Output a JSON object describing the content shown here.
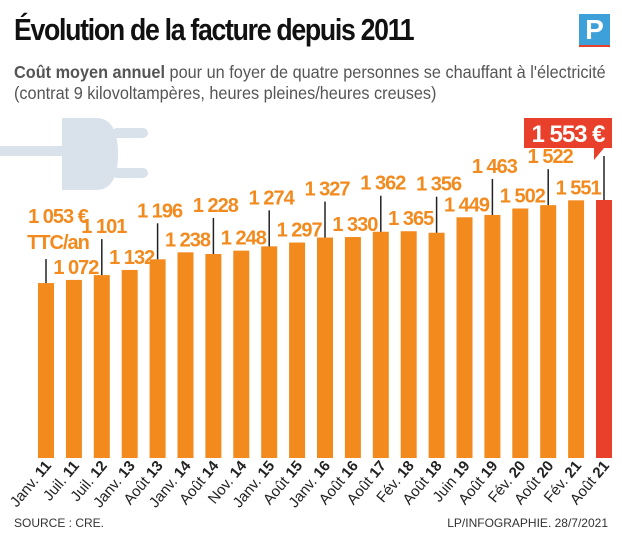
{
  "title": "Évolution de la facture depuis 2011",
  "subtitle_bold": "Coût moyen annuel",
  "subtitle_rest": " pour un foyer de quatre personnes se chauffant à l'électricité (contrat 9 kilovoltampères, heures pleines/heures creuses)",
  "logo": "P",
  "source": "SOURCE : CRE.",
  "credit": "LP/INFOGRAPHIE.  28/7/2021",
  "colors": {
    "bar": "#f28a1e",
    "highlight": "#e8402a",
    "plug": "#d9e2ea",
    "logo": "#3ea0d8"
  },
  "icons": [
    "electric-plug-icon"
  ],
  "chart_data": {
    "type": "bar",
    "title": "Évolution de la facture depuis 2011",
    "unit_label": "€ TTC/an",
    "first_label": [
      "1 053 €",
      "TTC/an"
    ],
    "last_label": "1 553 €",
    "categories": [
      [
        "Janv.",
        "11"
      ],
      [
        "Juil.",
        "11"
      ],
      [
        "Juil.",
        "12"
      ],
      [
        "Janv.",
        "13"
      ],
      [
        "Août",
        "13"
      ],
      [
        "Janv.",
        "14"
      ],
      [
        "Août",
        "14"
      ],
      [
        "Nov.",
        "14"
      ],
      [
        "Janv.",
        "15"
      ],
      [
        "Août",
        "15"
      ],
      [
        "Janv.",
        "16"
      ],
      [
        "Août",
        "16"
      ],
      [
        "Août",
        "17"
      ],
      [
        "Fév.",
        "18"
      ],
      [
        "Août",
        "18"
      ],
      [
        "Juin",
        "19"
      ],
      [
        "Août",
        "19"
      ],
      [
        "Fév.",
        "20"
      ],
      [
        "Août",
        "20"
      ],
      [
        "Fév.",
        "21"
      ],
      [
        "Août",
        "21"
      ]
    ],
    "values": [
      1053,
      1072,
      1101,
      1132,
      1196,
      1238,
      1228,
      1248,
      1274,
      1297,
      1327,
      1330,
      1362,
      1365,
      1356,
      1449,
      1463,
      1502,
      1522,
      1551,
      1553
    ],
    "labels": [
      "1 053 €",
      "1 072",
      "1 101",
      "1 132",
      "1 196",
      "1 238",
      "1 228",
      "1 248",
      "1 274",
      "1 297",
      "1 327",
      "1 330",
      "1 362",
      "1 365",
      "1 356",
      "1 449",
      "1 463",
      "1 502",
      "1 522",
      "1 551",
      "1 553 €"
    ],
    "ylim": [
      0,
      1553
    ],
    "grid": false,
    "highlight_last": true
  }
}
